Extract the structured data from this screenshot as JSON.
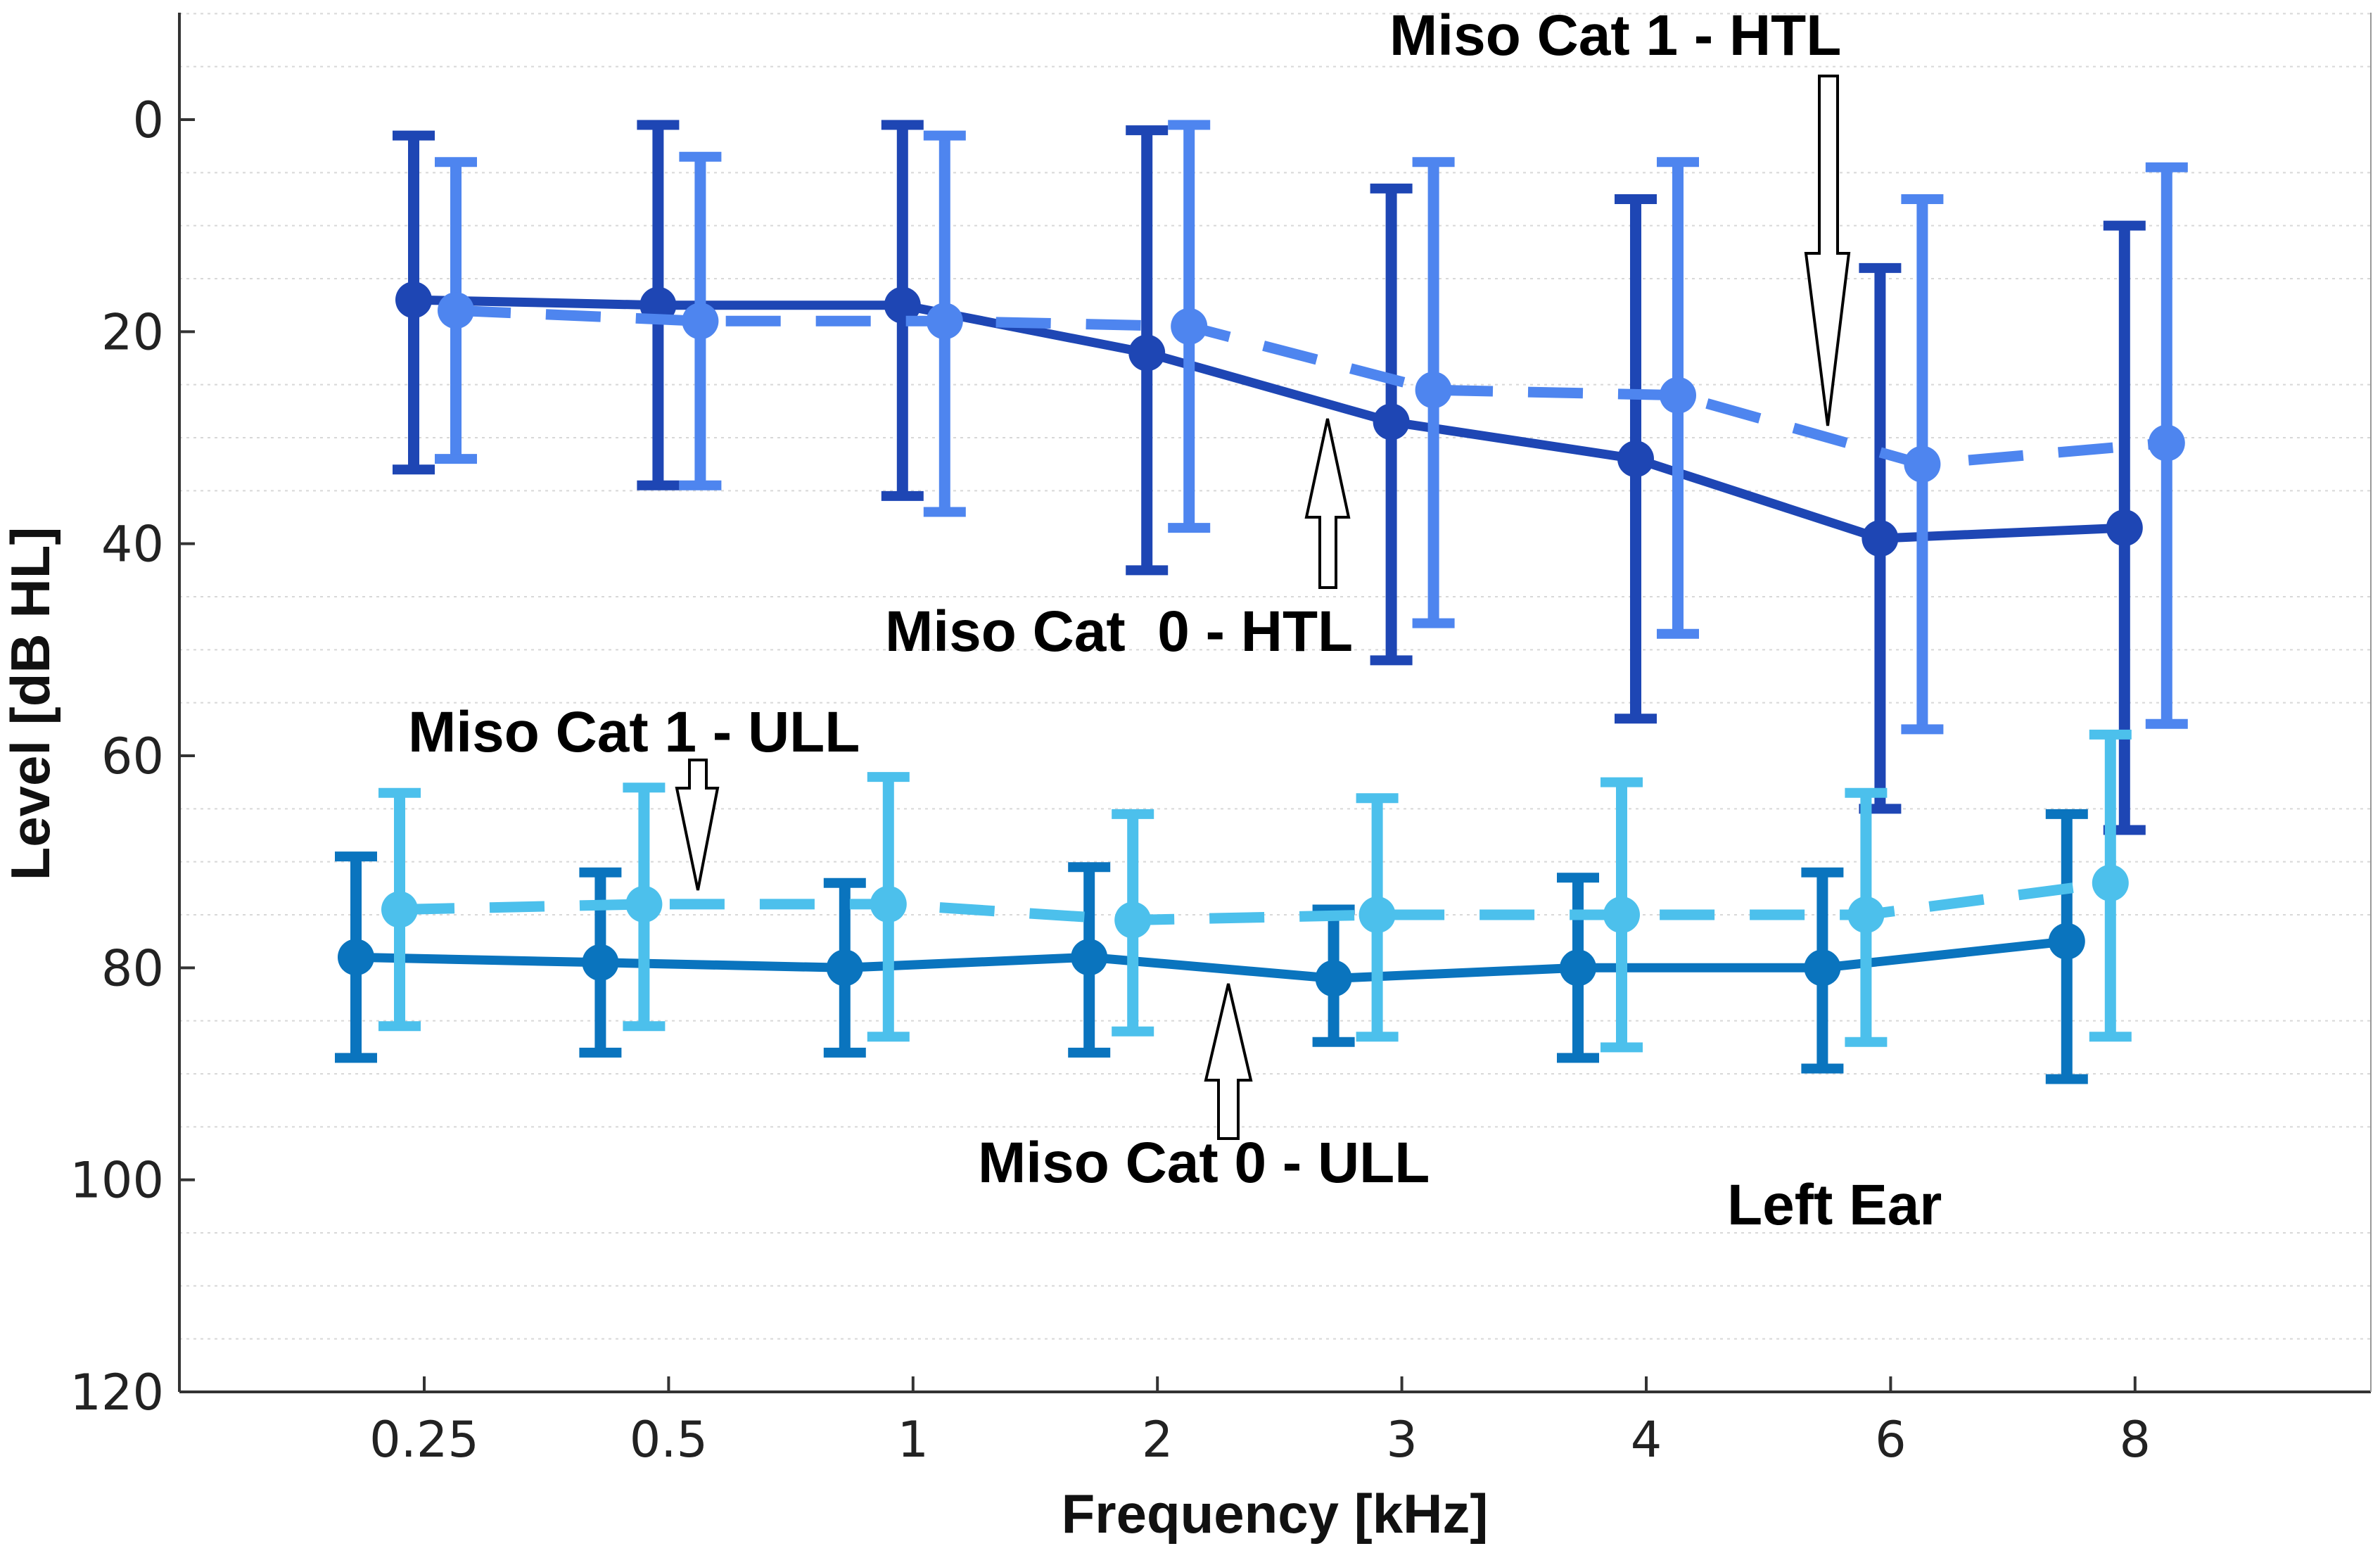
{
  "chart_data": {
    "type": "line",
    "title": "",
    "xlabel": "Frequency [kHz]",
    "ylabel": "Level [dB HL]",
    "categories": [
      "0.25",
      "0.5",
      "1",
      "2",
      "3",
      "4",
      "6",
      "8"
    ],
    "ylim": [
      120,
      -10
    ],
    "yticks": [
      0,
      20,
      40,
      60,
      80,
      100,
      120
    ],
    "y_inverted": true,
    "grid": "minor-horizontal",
    "series": [
      {
        "name": "Miso Cat 0 - HTL",
        "group": "HTL",
        "line_style": "solid",
        "color": "#1E46B4",
        "values": [
          17,
          17.5,
          17.5,
          22,
          28.5,
          32,
          39.5,
          38.5
        ],
        "err_low": [
          1.5,
          0.5,
          0.5,
          1,
          6.5,
          7.5,
          14,
          10
        ],
        "err_high": [
          33,
          34.5,
          35.5,
          42.5,
          51,
          56.5,
          65,
          67
        ]
      },
      {
        "name": "Miso Cat 1 - HTL",
        "group": "HTL",
        "line_style": "dashed",
        "color": "#4E85EF",
        "values": [
          18,
          19,
          19,
          19.5,
          25.5,
          26,
          32.5,
          30.5
        ],
        "err_low": [
          4,
          3.5,
          1.5,
          0.5,
          4,
          4,
          7.5,
          4.5
        ],
        "err_high": [
          32,
          34.5,
          37,
          38.5,
          47.5,
          48.5,
          57.5,
          57
        ]
      },
      {
        "name": "Miso Cat 0 - ULL",
        "group": "ULL",
        "line_style": "solid",
        "color": "#0A74BE",
        "values": [
          79,
          79.5,
          80,
          79,
          81,
          80,
          80,
          77.5
        ],
        "err_low": [
          69.5,
          71,
          72,
          70.5,
          74.5,
          71.5,
          71,
          65.5
        ],
        "err_high": [
          88.5,
          88,
          88,
          88,
          87,
          88.5,
          89.5,
          90.5
        ]
      },
      {
        "name": "Miso Cat 1 - ULL",
        "group": "ULL",
        "line_style": "dashed",
        "color": "#4CC0EC",
        "values": [
          74.5,
          74,
          74,
          75.5,
          75,
          75,
          75,
          72
        ],
        "err_low": [
          63.5,
          63,
          62,
          65.5,
          64,
          62.5,
          63.5,
          58
        ],
        "err_high": [
          85.5,
          85.5,
          86.5,
          86,
          86.5,
          87.5,
          87,
          86.5
        ]
      }
    ],
    "annotations": [
      {
        "text": "Miso Cat 1 - HTL",
        "points_to": "dashed HTL curve near 6 kHz"
      },
      {
        "text": "Miso Cat  0 - HTL",
        "points_to": "solid HTL curve near 3 kHz"
      },
      {
        "text": "Miso Cat 1 - ULL",
        "points_to": "dashed ULL curve near 0.5 kHz"
      },
      {
        "text": "Miso Cat 0 - ULL",
        "points_to": "solid ULL curve near 2 kHz"
      },
      {
        "text": "Left Ear",
        "points_to": ""
      }
    ]
  }
}
